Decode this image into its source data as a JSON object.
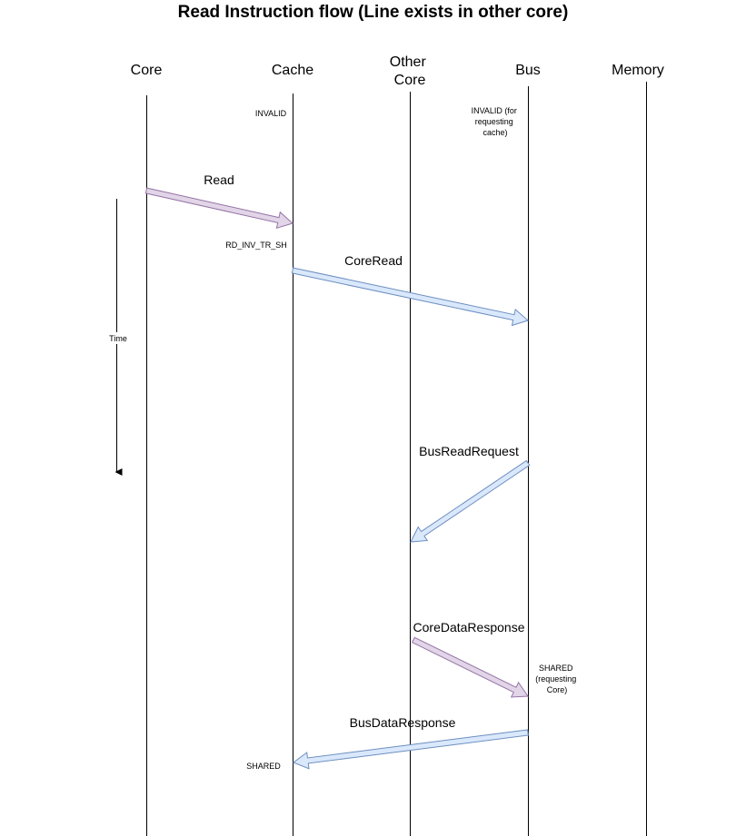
{
  "title": "Read Instruction flow (Line exists in other core)",
  "lanes": [
    {
      "id": "core",
      "label_lines": [
        "Core"
      ]
    },
    {
      "id": "cache",
      "label_lines": [
        "Cache"
      ]
    },
    {
      "id": "other",
      "label_lines": [
        "Other",
        "Core"
      ]
    },
    {
      "id": "bus",
      "label_lines": [
        "Bus"
      ]
    },
    {
      "id": "memory",
      "label_lines": [
        "Memory"
      ]
    }
  ],
  "time_label": "Time",
  "states": [
    {
      "id": "cache-invalid",
      "lines": [
        "INVALID"
      ]
    },
    {
      "id": "bus-invalid",
      "lines": [
        "INVALID (for",
        "requesting",
        "cache)"
      ]
    },
    {
      "id": "cache-transient",
      "lines": [
        "RD_INV_TR_SH"
      ]
    },
    {
      "id": "bus-shared",
      "lines": [
        "SHARED",
        "(requesting",
        "Core)"
      ]
    },
    {
      "id": "cache-shared",
      "lines": [
        "SHARED"
      ]
    }
  ],
  "messages": [
    {
      "id": "read",
      "label": "Read",
      "from": "core",
      "to": "cache",
      "color": "#e1d5e7",
      "stroke": "#9673a6"
    },
    {
      "id": "core-read",
      "label": "CoreRead",
      "from": "cache",
      "to": "bus",
      "color": "#dae8fc",
      "stroke": "#6c8ebf"
    },
    {
      "id": "bus-read-request",
      "label": "BusReadRequest",
      "from": "bus",
      "to": "other",
      "color": "#dae8fc",
      "stroke": "#6c8ebf"
    },
    {
      "id": "core-data-response",
      "label": "CoreDataResponse",
      "from": "other",
      "to": "bus",
      "color": "#e1d5e7",
      "stroke": "#9673a6"
    },
    {
      "id": "bus-data-response",
      "label": "BusDataResponse",
      "from": "bus",
      "to": "cache",
      "color": "#dae8fc",
      "stroke": "#6c8ebf"
    }
  ]
}
